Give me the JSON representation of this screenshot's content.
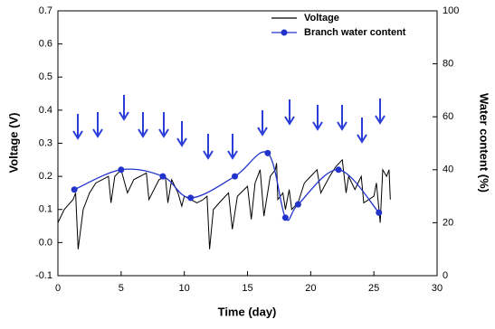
{
  "chart_data": {
    "type": "line",
    "xlabel": "Time (day)",
    "ylabel": "Voltage (V)",
    "y2label": "Water content (%)",
    "xlim": [
      0,
      30
    ],
    "xticks": [
      0,
      5,
      10,
      15,
      20,
      25,
      30
    ],
    "ylim": [
      -0.1,
      0.7
    ],
    "yticks": [
      {
        "value": -0.1,
        "label": "-0.1"
      },
      {
        "value": 0,
        "label": "0.0"
      },
      0.1,
      0.2,
      0.3,
      0.4,
      0.5,
      0.6,
      0.7
    ],
    "y2lim": [
      0,
      100
    ],
    "y2ticks": [
      0,
      20,
      40,
      60,
      80,
      100
    ],
    "legend": "upper right",
    "series": [
      {
        "name": "Voltage",
        "color": "#000000",
        "style": "line",
        "x": [
          0,
          0.5,
          1.2,
          1.4,
          1.6,
          2,
          2.5,
          3,
          3.5,
          4,
          4.2,
          4.5,
          5,
          5.5,
          6,
          7,
          7.2,
          8,
          8.5,
          8.7,
          9,
          9.5,
          9.8,
          10,
          10.5,
          11,
          11.5,
          11.8,
          12,
          12.3,
          13,
          13.5,
          13.8,
          14.2,
          15,
          15.3,
          15.6,
          16,
          16.3,
          16.8,
          17.2,
          17.3,
          17.4,
          17.8,
          18,
          18.3,
          18.5,
          19,
          19.5,
          20,
          20.5,
          20.8,
          21.5,
          22,
          22.5,
          22.8,
          23,
          23.5,
          24,
          24.2,
          25,
          25.2,
          25.5,
          25.7,
          26,
          26.2,
          26.3
        ],
        "values": [
          0.06,
          0.1,
          0.13,
          0.15,
          -0.02,
          0.1,
          0.15,
          0.18,
          0.19,
          0.2,
          0.12,
          0.2,
          0.22,
          0.15,
          0.19,
          0.21,
          0.13,
          0.19,
          0.2,
          0.12,
          0.19,
          0.15,
          0.11,
          0.14,
          0.13,
          0.12,
          0.13,
          0.14,
          -0.02,
          0.1,
          0.13,
          0.15,
          0.04,
          0.14,
          0.17,
          0.07,
          0.18,
          0.22,
          0.08,
          0.2,
          0.22,
          0.24,
          0.13,
          0.15,
          0.1,
          0.16,
          0.1,
          0.12,
          0.18,
          0.2,
          0.22,
          0.15,
          0.2,
          0.23,
          0.25,
          0.15,
          0.2,
          0.16,
          0.2,
          0.12,
          0.14,
          0.18,
          0.06,
          0.22,
          0.2,
          0.22,
          0.13
        ]
      },
      {
        "name": "Branch water content",
        "color": "#2233cc",
        "style": "smooth-marker",
        "axis": "y2",
        "x": [
          1.3,
          5,
          8.3,
          10.5,
          14,
          16.6,
          18,
          19,
          22.2,
          25.4
        ],
        "values": [
          32.5,
          40,
          37.5,
          29.4,
          37.5,
          46.3,
          21.9,
          26.9,
          40,
          23.8
        ]
      }
    ]
  }
}
